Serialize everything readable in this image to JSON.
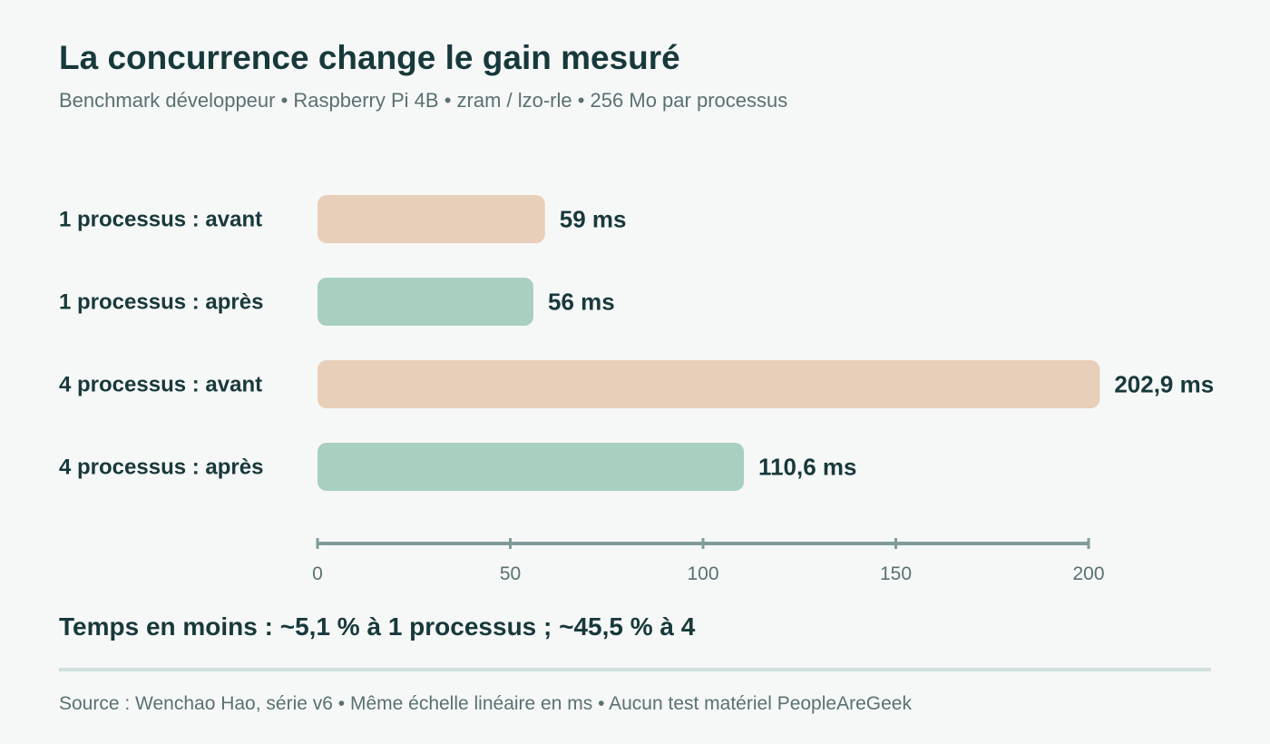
{
  "header": {
    "title": "La concurrence change le gain mesuré",
    "subtitle": "Benchmark développeur • Raspberry Pi 4B • zram / lzo-rle • 256 Mo par processus"
  },
  "chart_data": {
    "type": "bar",
    "orientation": "horizontal",
    "categories": [
      "1 processus : avant",
      "1 processus : après",
      "4 processus : avant",
      "4 processus : après"
    ],
    "values": [
      59,
      56,
      202.9,
      110.6
    ],
    "value_labels": [
      "59 ms",
      "56 ms",
      "202,9 ms",
      "110,6 ms"
    ],
    "unit": "ms",
    "xlim": [
      0,
      200
    ],
    "xticks": [
      0,
      50,
      100,
      150,
      200
    ],
    "grid": false,
    "colors": {
      "avant": "#e8cfba",
      "apres": "#a8cfbf",
      "axis": "#7f9c9b"
    },
    "bar_colors": [
      "#e8cfba",
      "#a8cfbf",
      "#e8cfba",
      "#a8cfbf"
    ]
  },
  "summary": "Temps en moins : ~5,1 % à 1 processus ; ~45,5 % à 4",
  "footer": {
    "source": "Source : Wenchao Hao, série v6 • Même échelle linéaire en ms • Aucun test matériel PeopleAreGeek"
  }
}
